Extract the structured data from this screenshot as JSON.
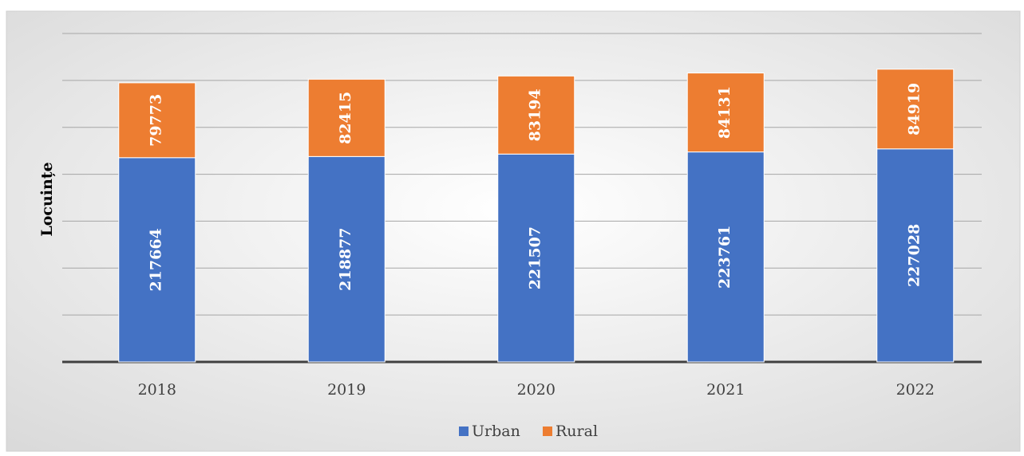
{
  "chart_data": {
    "type": "stacked_bar",
    "y_label": "Locuințe",
    "categories": [
      "2018",
      "2019",
      "2020",
      "2021",
      "2022"
    ],
    "series": [
      {
        "name": "Urban",
        "color": "#4472c4",
        "values": [
          217664,
          218877,
          221507,
          223761,
          227028
        ]
      },
      {
        "name": "Rural",
        "color": "#ed7d31",
        "values": [
          79773,
          82415,
          83194,
          84131,
          84919
        ]
      }
    ],
    "ylim": [
      0,
      350000
    ],
    "yticks": [
      0,
      50000,
      100000,
      150000,
      200000,
      250000,
      300000,
      350000
    ],
    "grid": true,
    "legend": "bottom"
  }
}
